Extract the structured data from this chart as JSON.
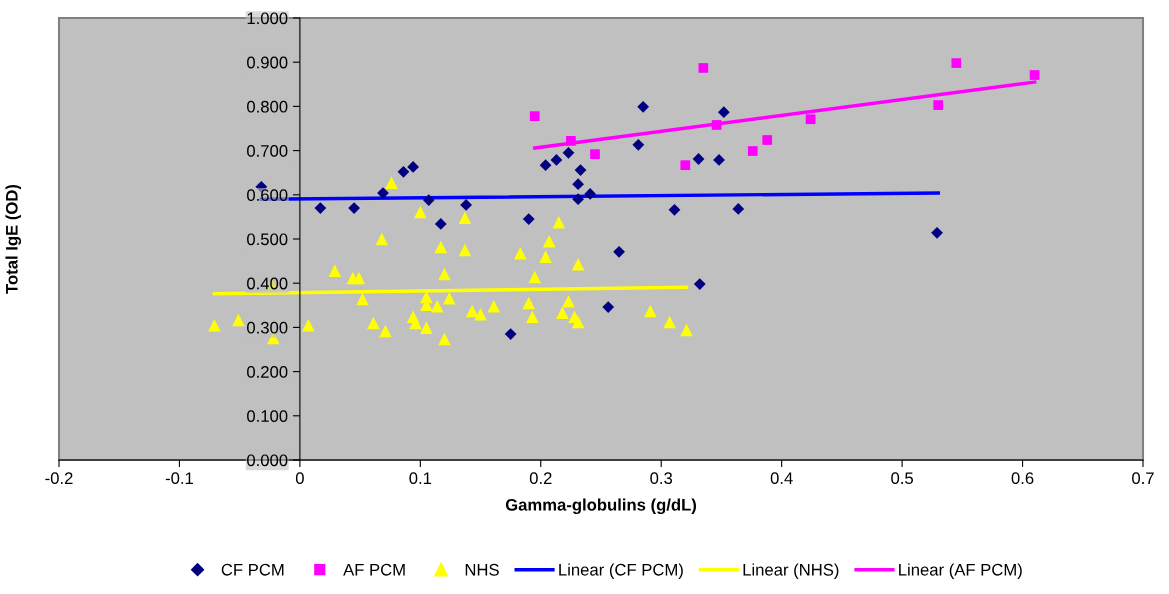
{
  "chart_data": {
    "type": "scatter",
    "xlabel": "Gamma-globulins (g/dL)",
    "ylabel": "Total IgE (OD)",
    "xlim": [
      -0.2,
      0.7
    ],
    "xticks": [
      -0.2,
      -0.1,
      0,
      0.1,
      0.2,
      0.3,
      0.4,
      0.5,
      0.6,
      0.7
    ],
    "ylim": [
      0,
      1
    ],
    "yticks": [
      {
        "value": 0,
        "label": "0.000"
      },
      {
        "value": 0.1,
        "label": "0.100"
      },
      {
        "value": 0.2,
        "label": "0.200"
      },
      {
        "value": 0.3,
        "label": "0.300"
      },
      {
        "value": 0.4,
        "label": "0.400"
      },
      {
        "value": 0.5,
        "label": "0.500"
      },
      {
        "value": 0.6,
        "label": "0.600"
      },
      {
        "value": 0.7,
        "label": "0.700"
      },
      {
        "value": 0.8,
        "label": "0.800"
      },
      {
        "value": 0.9,
        "label": "0.900"
      },
      {
        "value": 1,
        "label": "1.000"
      }
    ],
    "grid": false,
    "legend": "bottom",
    "series": [
      {
        "name": "CF PCM",
        "type": "scatter",
        "marker": "diamond",
        "color": "#000080",
        "x": [
          -0.032,
          0.017,
          0.045,
          0.069,
          0.086,
          0.094,
          0.107,
          0.117,
          0.138,
          0.19,
          0.204,
          0.213,
          0.223,
          0.233,
          0.231,
          0.231,
          0.241,
          0.265,
          0.256,
          0.175,
          0.285,
          0.281,
          0.311,
          0.331,
          0.348,
          0.352,
          0.364,
          0.332,
          0.529
        ],
        "values": [
          0.618,
          0.57,
          0.57,
          0.604,
          0.652,
          0.663,
          0.588,
          0.534,
          0.577,
          0.545,
          0.667,
          0.679,
          0.695,
          0.656,
          0.624,
          0.59,
          0.602,
          0.471,
          0.346,
          0.285,
          0.799,
          0.713,
          0.566,
          0.681,
          0.679,
          0.787,
          0.568,
          0.398,
          0.514
        ]
      },
      {
        "name": "AF PCM",
        "type": "scatter",
        "marker": "square",
        "color": "#ff00ff",
        "x": [
          0.195,
          0.225,
          0.245,
          0.32,
          0.335,
          0.346,
          0.376,
          0.388,
          0.424,
          0.53,
          0.545,
          0.61
        ],
        "values": [
          0.778,
          0.722,
          0.692,
          0.667,
          0.887,
          0.758,
          0.699,
          0.724,
          0.771,
          0.803,
          0.898,
          0.871
        ]
      },
      {
        "name": "NHS",
        "type": "scatter",
        "marker": "triangle",
        "color": "#ffff00",
        "x": [
          -0.071,
          -0.051,
          -0.022,
          -0.023,
          0.007,
          0.029,
          0.044,
          0.049,
          0.052,
          0.061,
          0.071,
          0.068,
          0.076,
          0.1,
          0.105,
          0.105,
          0.094,
          0.096,
          0.105,
          0.114,
          0.117,
          0.12,
          0.12,
          0.124,
          0.137,
          0.137,
          0.143,
          0.15,
          0.161,
          0.183,
          0.19,
          0.193,
          0.195,
          0.204,
          0.207,
          0.215,
          0.218,
          0.223,
          0.228,
          0.231,
          0.231,
          0.291,
          0.307,
          0.321
        ],
        "values": [
          0.305,
          0.317,
          0.276,
          0.398,
          0.305,
          0.428,
          0.412,
          0.412,
          0.364,
          0.31,
          0.292,
          0.5,
          0.627,
          0.561,
          0.369,
          0.351,
          0.324,
          0.31,
          0.299,
          0.348,
          0.482,
          0.421,
          0.274,
          0.366,
          0.548,
          0.475,
          0.337,
          0.33,
          0.348,
          0.468,
          0.355,
          0.324,
          0.414,
          0.46,
          0.495,
          0.538,
          0.333,
          0.359,
          0.324,
          0.312,
          0.443,
          0.337,
          0.312,
          0.294
        ]
      },
      {
        "name": "Linear (CF PCM)",
        "type": "line",
        "marker": "none",
        "color": "#0000ff",
        "x": [
          -0.032,
          0.53
        ],
        "values": [
          0.59,
          0.604
        ]
      },
      {
        "name": "Linear (NHS)",
        "type": "line",
        "marker": "none",
        "color": "#ffff00",
        "x": [
          -0.071,
          0.321
        ],
        "values": [
          0.376,
          0.391
        ]
      },
      {
        "name": "Linear (AF PCM)",
        "type": "line",
        "marker": "none",
        "color": "#ff00ff",
        "x": [
          0.195,
          0.61
        ],
        "values": [
          0.706,
          0.855
        ]
      }
    ]
  }
}
